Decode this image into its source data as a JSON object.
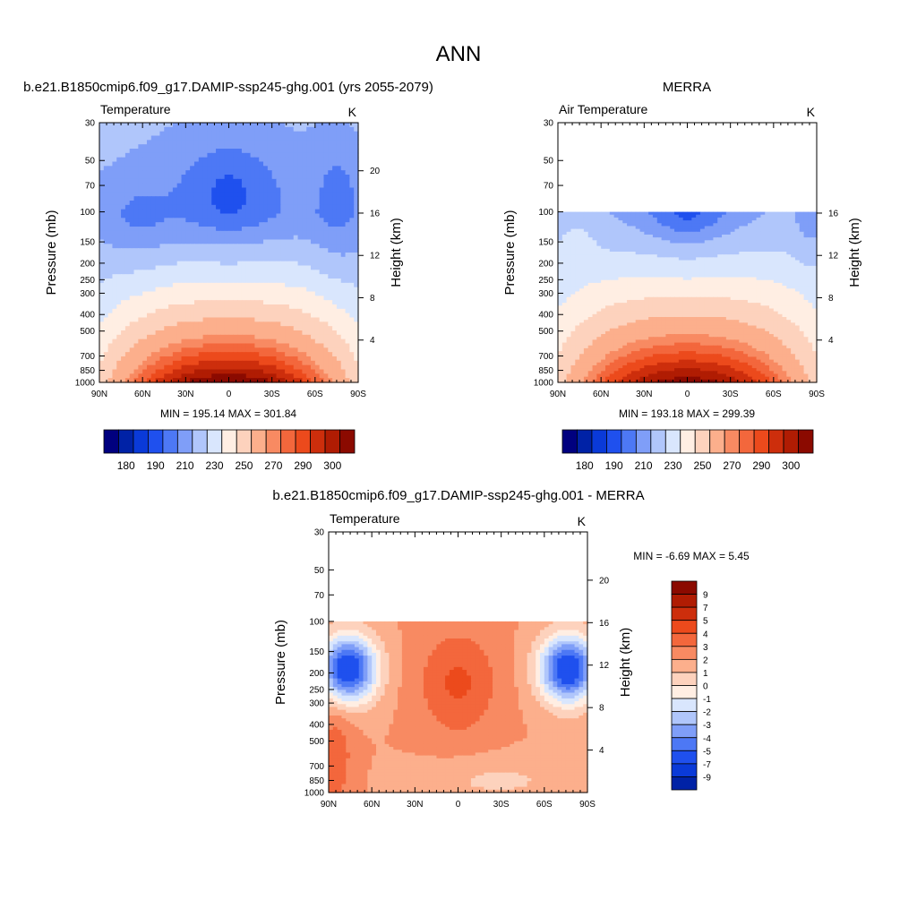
{
  "figure": {
    "title": "ANN",
    "palette": [
      "#00007f",
      "#0022a6",
      "#0a3ad8",
      "#1f50ee",
      "#4d78f5",
      "#7f9ef8",
      "#b0c6fb",
      "#d9e6fd",
      "#ffeee3",
      "#fdd2bd",
      "#fcaf8c",
      "#f88a62",
      "#f3673c",
      "#ec4a1c",
      "#cd2e0c",
      "#b01c03",
      "#8b0a00"
    ]
  },
  "chart_data": [
    {
      "type": "contour",
      "header": "b.e21.B1850cmip6.f09_g17.DAMIP-ssp245-ghg.001 (yrs 2055-2079)",
      "left_label": "Temperature",
      "right_label": "K",
      "xlabel": "",
      "ylabel": "Pressure (mb)",
      "ylabel_right": "Height (km)",
      "x_ticks": [
        "90N",
        "60N",
        "30N",
        "0",
        "30S",
        "60S",
        "90S"
      ],
      "y_ticks": [
        "30",
        "50",
        "70",
        "100",
        "150",
        "200",
        "250",
        "300",
        "400",
        "500",
        "700",
        "850",
        "1000"
      ],
      "y_ticks_right": [
        "20",
        "16",
        "12",
        "8",
        "4"
      ],
      "stats": "MIN = 195.14  MAX = 301.84",
      "colorbar_labels": [
        "180",
        "190",
        "210",
        "230",
        "250",
        "270",
        "290",
        "300"
      ],
      "field": {
        "min": 195.14,
        "max": 301.84,
        "top_pressure": 30
      }
    },
    {
      "type": "contour",
      "header": "MERRA",
      "left_label": "Air Temperature",
      "right_label": "K",
      "xlabel": "",
      "ylabel": "Pressure (mb)",
      "ylabel_right": "Height (km)",
      "x_ticks": [
        "90N",
        "60N",
        "30N",
        "0",
        "30S",
        "60S",
        "90S"
      ],
      "y_ticks": [
        "30",
        "50",
        "70",
        "100",
        "150",
        "200",
        "250",
        "300",
        "400",
        "500",
        "700",
        "850",
        "1000"
      ],
      "y_ticks_right": [
        "16",
        "12",
        "8",
        "4"
      ],
      "stats": "MIN = 193.18  MAX = 299.39",
      "colorbar_labels": [
        "180",
        "190",
        "210",
        "230",
        "250",
        "270",
        "290",
        "300"
      ],
      "field": {
        "min": 193.18,
        "max": 299.39,
        "top_pressure": 100
      }
    },
    {
      "type": "contour",
      "header": "b.e21.B1850cmip6.f09_g17.DAMIP-ssp245-ghg.001 - MERRA",
      "left_label": "Temperature",
      "right_label": "K",
      "xlabel": "",
      "ylabel": "Pressure (mb)",
      "ylabel_right": "Height (km)",
      "x_ticks": [
        "90N",
        "60N",
        "30N",
        "0",
        "30S",
        "60S",
        "90S"
      ],
      "y_ticks": [
        "30",
        "50",
        "70",
        "100",
        "150",
        "200",
        "250",
        "300",
        "400",
        "500",
        "700",
        "850",
        "1000"
      ],
      "y_ticks_right": [
        "20",
        "16",
        "12",
        "8",
        "4"
      ],
      "stats": "MIN =  -6.69  MAX =   5.45",
      "colorbar_labels": [
        "9",
        "7",
        "5",
        "4",
        "3",
        "2",
        "1",
        "0",
        "-1",
        "-2",
        "-3",
        "-4",
        "-5",
        "-7",
        "-9"
      ],
      "field": {
        "min": -6.69,
        "max": 5.45,
        "top_pressure": 100
      }
    }
  ]
}
